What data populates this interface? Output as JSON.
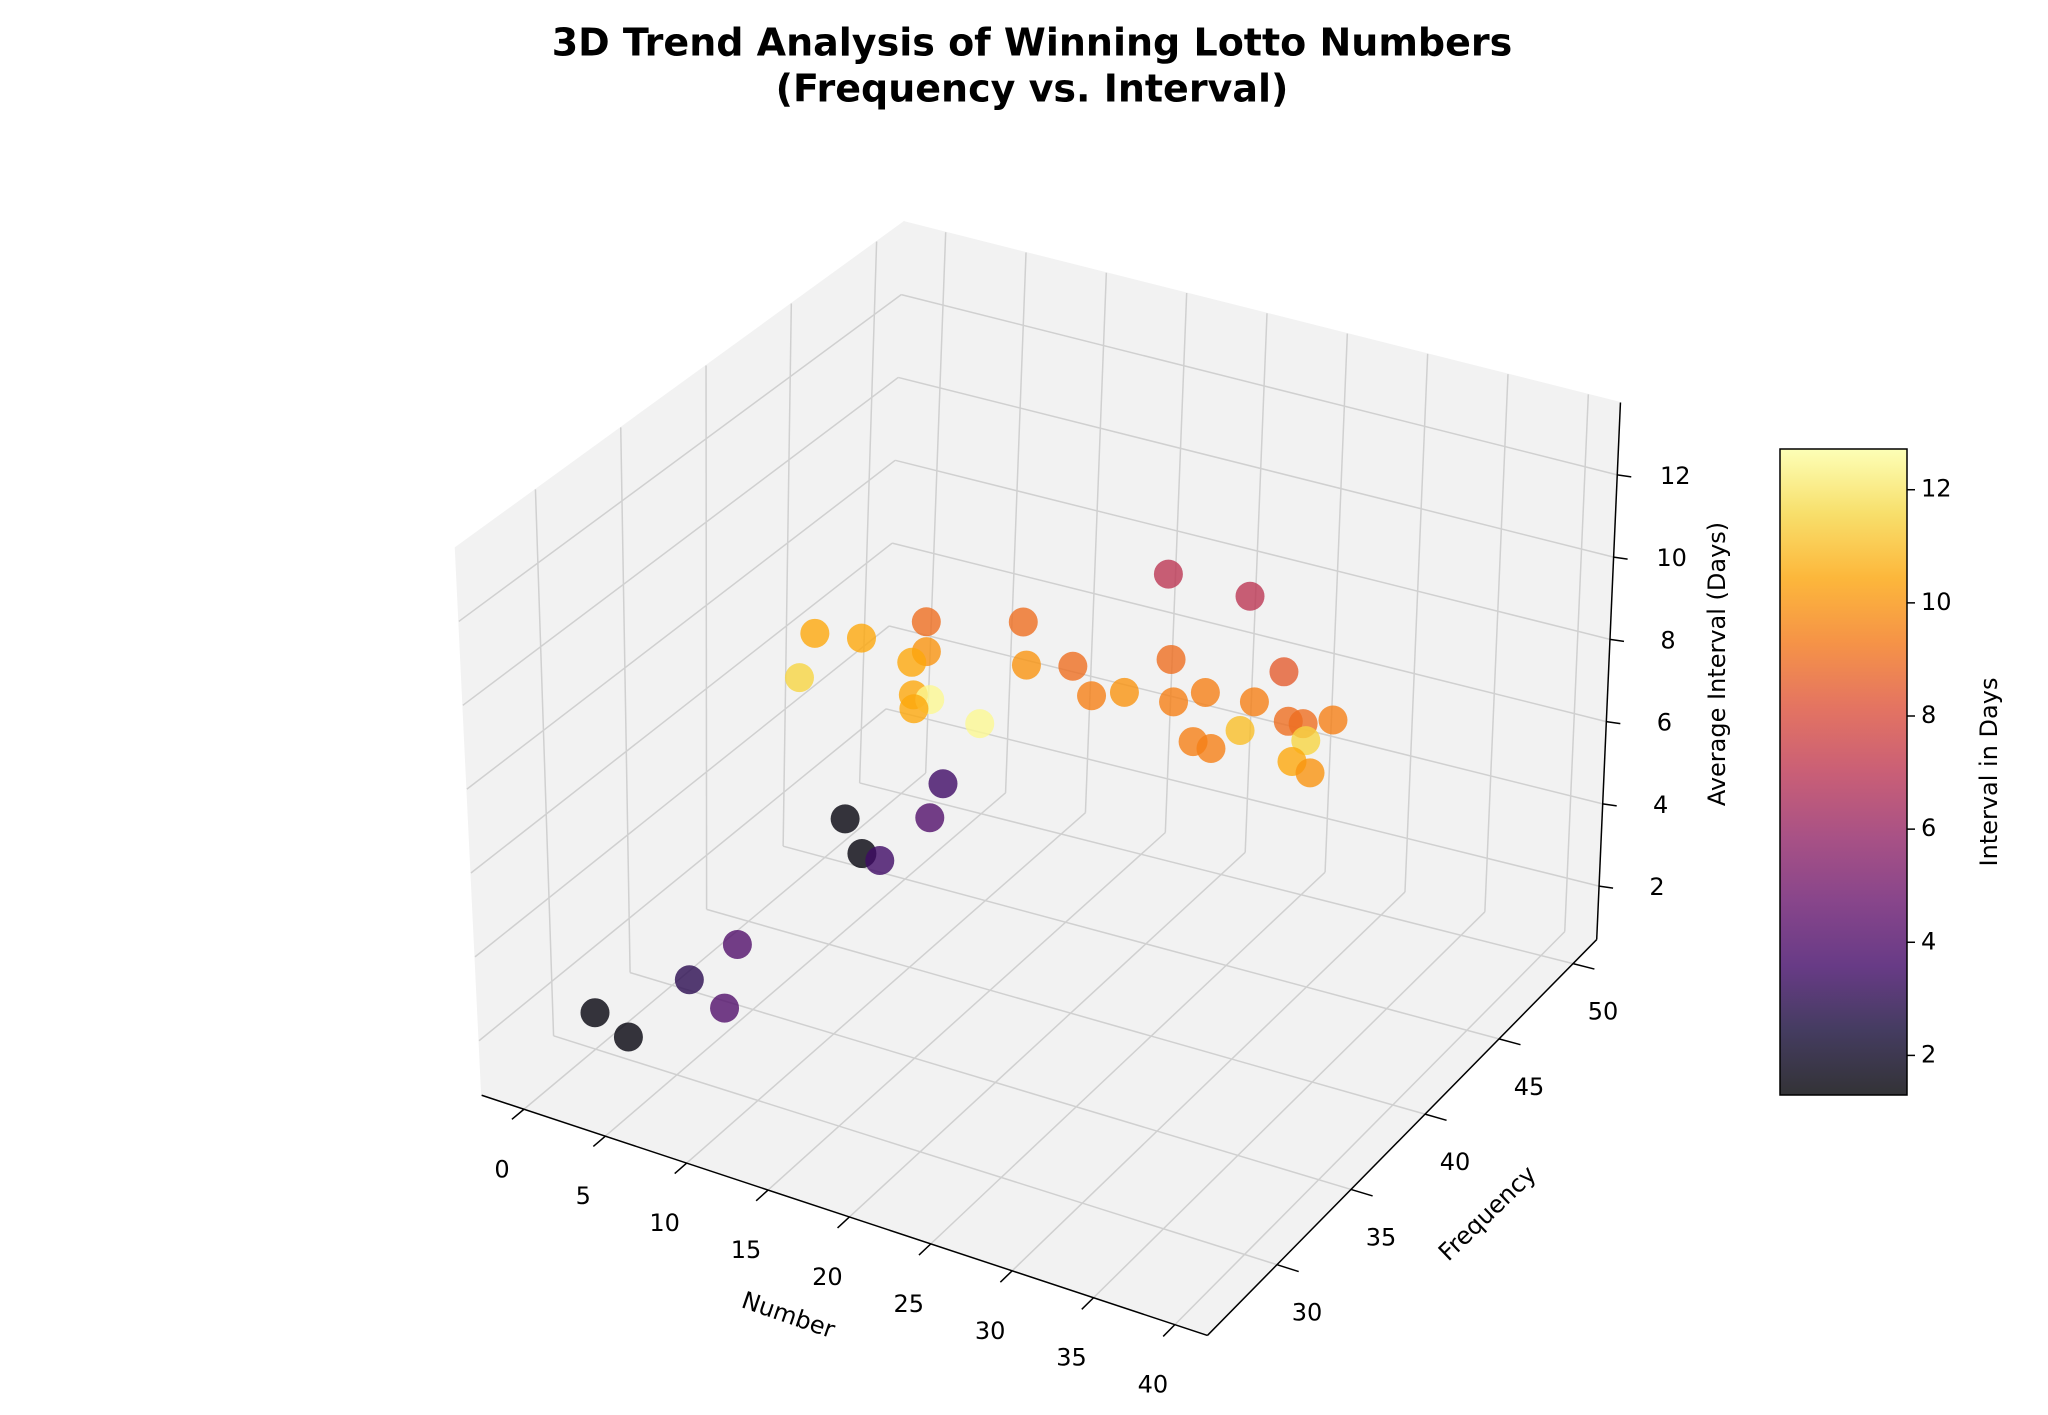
{
  "chart_data": {
    "type": "scatter3d",
    "title": [
      "3D Trend Analysis of Winning Lotto Numbers",
      "(Frequency vs. Interval)"
    ],
    "xlabel": "Number",
    "ylabel": "Frequency",
    "zlabel": "Average Interval (Days)",
    "colorbar_label": "Interval in Days",
    "colormap": "inferno",
    "alpha": 0.8,
    "x": [
      1,
      4,
      3,
      9,
      6,
      7,
      5,
      10,
      11,
      14,
      8,
      6,
      3,
      12,
      13,
      9,
      7,
      6,
      13,
      17,
      11,
      16,
      16,
      20,
      22,
      17,
      23,
      22,
      25,
      26,
      28,
      29,
      32,
      32,
      32,
      29,
      31,
      30,
      34,
      35,
      37
    ],
    "y": [
      29,
      28,
      33,
      29,
      33,
      40,
      41,
      38,
      41,
      37,
      35,
      38,
      44,
      38,
      37,
      41,
      44,
      45,
      38,
      37,
      46,
      41,
      44,
      41,
      41,
      49,
      48,
      44,
      41,
      42,
      45,
      42,
      41,
      42,
      44,
      38,
      37,
      40,
      40,
      38,
      37
    ],
    "z": [
      2.0,
      2.1,
      1.8,
      3.1,
      3.0,
      3.1,
      3.4,
      3.9,
      4.9,
      5.7,
      9.0,
      8.9,
      6.6,
      8.1,
      8.2,
      7.6,
      6.7,
      7.0,
      8.1,
      8.3,
      7.2,
      8.3,
      7.3,
      8.0,
      8.3,
      8.0,
      8.4,
      8.1,
      8.4,
      8.4,
      8.1,
      8.5,
      8.7,
      8.3,
      7.7,
      8.9,
      9.3,
      8.6,
      8.8,
      9.1,
      9.4
    ],
    "c": [
      1.5,
      1.5,
      3.0,
      4.0,
      4.0,
      1.5,
      1.5,
      3.5,
      3.5,
      4.0,
      11.5,
      10.5,
      10.5,
      10.5,
      10.5,
      10.5,
      10.0,
      9.0,
      12.5,
      12.5,
      9.0,
      10.0,
      9.0,
      9.5,
      10.0,
      7.0,
      7.0,
      9.0,
      9.5,
      9.5,
      8.5,
      9.5,
      9.0,
      9.0,
      9.5,
      9.5,
      9.5,
      11.0,
      11.5,
      10.5,
      10.0
    ],
    "xlim": [
      -2.6,
      42.0
    ],
    "xticks": [
      0,
      5,
      10,
      15,
      20,
      25,
      30,
      35,
      40
    ],
    "ylim": [
      25.3,
      51.6
    ],
    "yticks": [
      30,
      35,
      40,
      45,
      50
    ],
    "zlim": [
      0.7,
      13.76
    ],
    "zticks": [
      2,
      4,
      6,
      8,
      10,
      12
    ],
    "clim": [
      1.3,
      12.72
    ],
    "cticks": [
      2,
      4,
      6,
      8,
      10,
      12
    ],
    "grid": true
  }
}
